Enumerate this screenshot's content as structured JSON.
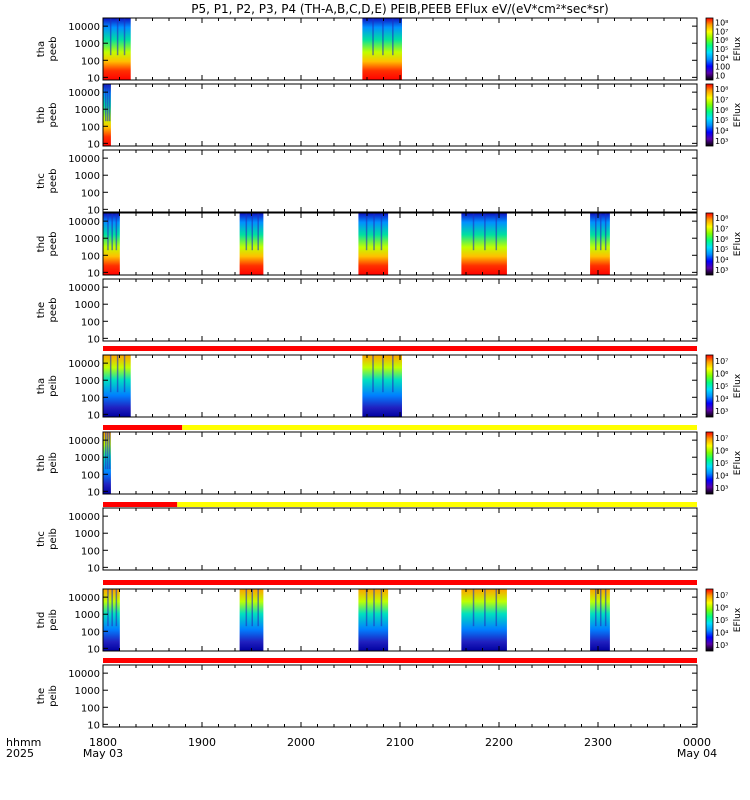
{
  "title": "P5, P1, P2, P3, P4 (TH-A,B,C,D,E) PEIB,PEEB EFlux eV/(eV*cm²*sec*sr)",
  "colorbar_unit": "EFlux",
  "x_axis": {
    "row1_label": "hhmm",
    "row2_label": "2025",
    "ticks": [
      "1800",
      "1900",
      "2000",
      "2100",
      "2200",
      "2300",
      "0000"
    ],
    "tick_values_hours": [
      18,
      19,
      20,
      21,
      22,
      23,
      24
    ],
    "date_start": "May 03",
    "date_end": "May 04"
  },
  "y_ticks": [
    "10",
    "100",
    "1000",
    "10000"
  ],
  "chart_data": [
    {
      "type": "heatmap",
      "panel": "tha peeb",
      "ylabel": [
        "tha",
        "peeb"
      ],
      "ylim_eV": [
        7,
        30000
      ],
      "yscale": "log",
      "intervals_hours": [
        [
          18.0,
          18.28
        ],
        [
          20.62,
          21.02
        ]
      ],
      "colorbar_ticks": [
        "10",
        "100",
        "10⁴",
        "10⁵",
        "10⁶",
        "10⁷",
        "10⁸"
      ],
      "has_colorbar": true
    },
    {
      "type": "heatmap",
      "panel": "thb peeb",
      "ylabel": [
        "thb",
        "peeb"
      ],
      "ylim_eV": [
        7,
        30000
      ],
      "yscale": "log",
      "intervals_hours": [
        [
          18.0,
          18.08
        ]
      ],
      "colorbar_ticks": [
        "10³",
        "10⁴",
        "10⁵",
        "10⁶",
        "10⁷",
        "10⁸"
      ],
      "has_colorbar": true
    },
    {
      "type": "heatmap",
      "panel": "thc peeb",
      "ylabel": [
        "thc",
        "peeb"
      ],
      "ylim_eV": [
        7,
        30000
      ],
      "yscale": "log",
      "intervals_hours": [],
      "has_colorbar": false
    },
    {
      "type": "heatmap",
      "panel": "thd peeb",
      "ylabel": [
        "thd",
        "peeb"
      ],
      "ylim_eV": [
        7,
        30000
      ],
      "yscale": "log",
      "intervals_hours": [
        [
          18.0,
          18.17
        ],
        [
          19.38,
          19.62
        ],
        [
          20.58,
          20.88
        ],
        [
          21.62,
          22.08
        ],
        [
          22.92,
          23.12
        ]
      ],
      "colorbar_ticks": [
        "10³",
        "10⁴",
        "10⁵",
        "10⁶",
        "10⁷",
        "10⁸"
      ],
      "has_colorbar": true
    },
    {
      "type": "heatmap",
      "panel": "the peeb",
      "ylabel": [
        "the",
        "peeb"
      ],
      "ylim_eV": [
        7,
        30000
      ],
      "yscale": "log",
      "intervals_hours": [],
      "has_colorbar": false
    },
    {
      "type": "heatmap",
      "panel": "tha peib",
      "ylabel": [
        "tha",
        "peib"
      ],
      "ylim_eV": [
        7,
        30000
      ],
      "yscale": "log",
      "intervals_hours": [
        [
          18.0,
          18.28
        ],
        [
          20.62,
          21.02
        ]
      ],
      "colorbar_ticks": [
        "10³",
        "10⁴",
        "10⁵",
        "10⁶",
        "10⁷"
      ],
      "has_colorbar": true
    },
    {
      "type": "heatmap",
      "panel": "thb peib",
      "ylabel": [
        "thb",
        "peib"
      ],
      "ylim_eV": [
        7,
        30000
      ],
      "yscale": "log",
      "intervals_hours": [
        [
          18.0,
          18.08
        ]
      ],
      "colorbar_ticks": [
        "10³",
        "10⁴",
        "10⁵",
        "10⁶",
        "10⁷"
      ],
      "has_colorbar": true
    },
    {
      "type": "heatmap",
      "panel": "thc peib",
      "ylabel": [
        "thc",
        "peib"
      ],
      "ylim_eV": [
        7,
        30000
      ],
      "yscale": "log",
      "intervals_hours": [],
      "has_colorbar": false
    },
    {
      "type": "heatmap",
      "panel": "thd peib",
      "ylabel": [
        "thd",
        "peib"
      ],
      "ylim_eV": [
        7,
        30000
      ],
      "yscale": "log",
      "intervals_hours": [
        [
          18.0,
          18.17
        ],
        [
          19.38,
          19.62
        ],
        [
          20.58,
          20.88
        ],
        [
          21.62,
          22.08
        ],
        [
          22.92,
          23.12
        ]
      ],
      "colorbar_ticks": [
        "10³",
        "10⁴",
        "10⁵",
        "10⁶",
        "10⁷"
      ],
      "has_colorbar": true
    },
    {
      "type": "heatmap",
      "panel": "the peib",
      "ylabel": [
        "the",
        "peib"
      ],
      "ylim_eV": [
        7,
        30000
      ],
      "yscale": "log",
      "intervals_hours": [],
      "has_colorbar": false
    }
  ],
  "mode_bars": [
    {
      "after_panel": 4,
      "segments": [
        {
          "from_hours": 18.0,
          "to_hours": 24.0,
          "color": "#ff0000"
        }
      ]
    },
    {
      "after_panel": 5,
      "segments": [
        {
          "from_hours": 18.0,
          "to_hours": 18.8,
          "color": "#ff0000"
        },
        {
          "from_hours": 18.8,
          "to_hours": 24.0,
          "color": "#ffff00"
        }
      ]
    },
    {
      "after_panel": 6,
      "segments": [
        {
          "from_hours": 18.0,
          "to_hours": 18.75,
          "color": "#ff0000"
        },
        {
          "from_hours": 18.75,
          "to_hours": 24.0,
          "color": "#ffff00"
        }
      ]
    },
    {
      "after_panel": 7,
      "segments": [
        {
          "from_hours": 18.0,
          "to_hours": 24.0,
          "color": "#ff0000"
        }
      ]
    },
    {
      "after_panel": 8,
      "segments": [
        {
          "from_hours": 18.0,
          "to_hours": 24.0,
          "color": "#ff0000"
        }
      ]
    }
  ],
  "colors": {
    "palette": [
      "#000000",
      "#5a00a8",
      "#0000ff",
      "#0090ff",
      "#00e0ff",
      "#00ff80",
      "#80ff00",
      "#ffff00",
      "#ffa000",
      "#ff0000"
    ]
  }
}
